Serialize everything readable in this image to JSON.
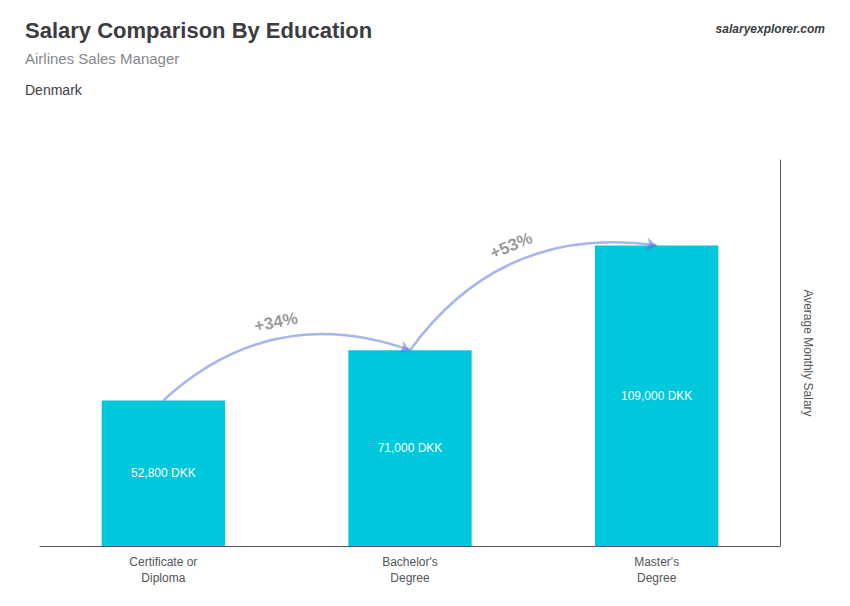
{
  "chart_data": {
    "type": "bar",
    "title": "Salary Comparison By Education",
    "subtitle": "Airlines Sales Manager",
    "country": "Denmark",
    "source": "salaryexplorer.com",
    "categories": [
      "Certificate or\nDiploma",
      "Bachelor's\nDegree",
      "Master's\nDegree"
    ],
    "values": [
      52800,
      71000,
      109000
    ],
    "value_labels": [
      "52,800 DKK",
      "71,000 DKK",
      "109,000 DKK"
    ],
    "data_labels": true,
    "annotations": [
      "+34%",
      "+53%"
    ],
    "ylabel": "Average Monthly Salary",
    "ylim": [
      0,
      140000
    ],
    "tick_labels": "x",
    "grid": false,
    "color": "#00c8dc"
  }
}
